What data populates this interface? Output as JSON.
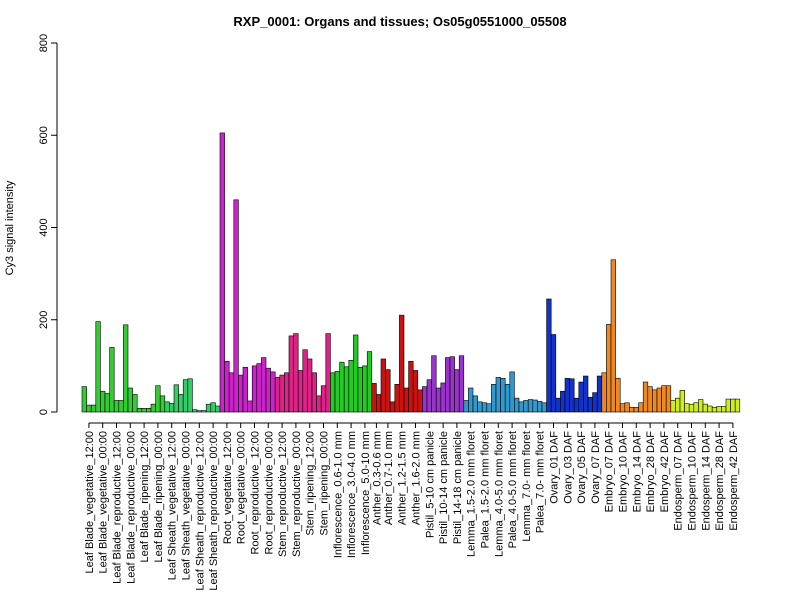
{
  "chart_data": {
    "type": "bar",
    "title": "RXP_0001: Organs and tissues; Os05g0551000_05508",
    "xlabel": "",
    "ylabel": "Cy3 signal intensity",
    "ylim": [
      0,
      800
    ],
    "yticks": [
      0,
      200,
      400,
      600,
      800
    ],
    "grid": false,
    "legend": "none",
    "groups": [
      {
        "label": "Leaf Blade_vegetative_12:00",
        "color": "#33CC33",
        "values": [
          55,
          15,
          15
        ]
      },
      {
        "label": "Leaf Blade_vegetative_00:00",
        "color": "#33CC33",
        "values": [
          196,
          45,
          40
        ]
      },
      {
        "label": "Leaf Blade_reproductive_12:00",
        "color": "#33CC33",
        "values": [
          140,
          25,
          25
        ]
      },
      {
        "label": "Leaf Blade_reproductive_00:00",
        "color": "#33CC33",
        "values": [
          189,
          52,
          38
        ]
      },
      {
        "label": "Leaf Blade_ripening_12:00",
        "color": "#33CC33",
        "values": [
          8,
          8,
          8
        ]
      },
      {
        "label": "Leaf Blade_ripening_00:00",
        "color": "#33CC33",
        "values": [
          17,
          57,
          35
        ]
      },
      {
        "label": "Leaf Sheath_vegetative_12:00",
        "color": "#33CC66",
        "values": [
          22,
          19,
          59
        ]
      },
      {
        "label": "Leaf Sheath_vegetative_00:00",
        "color": "#33CC66",
        "values": [
          38,
          70,
          72
        ]
      },
      {
        "label": "Leaf Sheath_reproductive_12:00",
        "color": "#33CC66",
        "values": [
          5,
          3,
          3
        ]
      },
      {
        "label": "Leaf Sheath_reproductive_00:00",
        "color": "#33CC66",
        "values": [
          17,
          20,
          13
        ]
      },
      {
        "label": "Root_vegetative_12:00",
        "color": "#CC22CC",
        "values": [
          605,
          110,
          85
        ]
      },
      {
        "label": "Root_vegetative_00:00",
        "color": "#CC22CC",
        "values": [
          460,
          80,
          97
        ]
      },
      {
        "label": "Root_reproductive_12:00",
        "color": "#CC22CC",
        "values": [
          24,
          100,
          105
        ]
      },
      {
        "label": "Root_reproductive_00:00",
        "color": "#CC22CC",
        "values": [
          118,
          95,
          87
        ]
      },
      {
        "label": "Stem_reproductive_12:00",
        "color": "#DD2288",
        "values": [
          75,
          80,
          85
        ]
      },
      {
        "label": "Stem_reproductive_00:00",
        "color": "#DD2288",
        "values": [
          165,
          170,
          90
        ]
      },
      {
        "label": "Stem_ripening_12:00",
        "color": "#DD2288",
        "values": [
          135,
          115,
          85
        ]
      },
      {
        "label": "Stem_ripening_00:00",
        "color": "#DD2288",
        "values": [
          35,
          57,
          170
        ]
      },
      {
        "label": "Inflorescence_0.6-1.0 mm",
        "color": "#22CC22",
        "values": [
          85,
          88,
          108
        ]
      },
      {
        "label": "Inflorescence_3.0-4.0 mm",
        "color": "#22CC22",
        "values": [
          98,
          112,
          167
        ]
      },
      {
        "label": "Inflorescence_5.0-10 mm",
        "color": "#22CC22",
        "values": [
          97,
          100,
          131
        ]
      },
      {
        "label": "Anther_0.3-0.6 mm",
        "color": "#CC1111",
        "values": [
          62,
          38
        ]
      },
      {
        "label": "Anther_0.7-1.0 mm",
        "color": "#CC1111",
        "values": [
          115,
          92,
          22
        ]
      },
      {
        "label": "Anther_1.2-1.5 mm",
        "color": "#CC1111",
        "values": [
          60,
          210,
          52
        ]
      },
      {
        "label": "Anther_1.6-2.0 mm",
        "color": "#CC1111",
        "values": [
          110,
          90,
          48
        ]
      },
      {
        "label": "Pistil_5-10 cm panicle",
        "color": "#9933CC",
        "values": [
          55,
          70,
          122
        ]
      },
      {
        "label": "Pistil_10-14 cm panicle",
        "color": "#9933CC",
        "values": [
          52,
          63,
          118
        ]
      },
      {
        "label": "Pistil_14-18 cm panicle",
        "color": "#9933CC",
        "values": [
          120,
          92,
          122
        ]
      },
      {
        "label": "Lemma_1.5-2.0 mm floret",
        "color": "#3399CC",
        "values": [
          25,
          52,
          35
        ]
      },
      {
        "label": "Palea_1.5-2.0 mm floret",
        "color": "#3399CC",
        "values": [
          22,
          20,
          18
        ]
      },
      {
        "label": "Lemma_4.0-5.0 mm floret",
        "color": "#3399CC",
        "values": [
          60,
          75,
          73
        ]
      },
      {
        "label": "Palea_4.0-5.0 mm floret",
        "color": "#3399CC",
        "values": [
          60,
          87,
          30
        ]
      },
      {
        "label": "Lemma_7.0- mm floret",
        "color": "#3399CC",
        "values": [
          22,
          25,
          27
        ]
      },
      {
        "label": "Palea_7.0- mm floret",
        "color": "#3399CC",
        "values": [
          26,
          23,
          20
        ]
      },
      {
        "label": "Ovary_01 DAF",
        "color": "#1133CC",
        "values": [
          245,
          168,
          30
        ]
      },
      {
        "label": "Ovary_03 DAF",
        "color": "#1133CC",
        "values": [
          45,
          73,
          72
        ]
      },
      {
        "label": "Ovary_05 DAF",
        "color": "#1133CC",
        "values": [
          30,
          65,
          78
        ]
      },
      {
        "label": "Ovary_07 DAF",
        "color": "#1133CC",
        "values": [
          32,
          42,
          78
        ]
      },
      {
        "label": "Embryo_07 DAF",
        "color": "#EE8822",
        "values": [
          85,
          190,
          330
        ]
      },
      {
        "label": "Embryo_10 DAF",
        "color": "#EE8822",
        "values": [
          73,
          18,
          20
        ]
      },
      {
        "label": "Embryo_14 DAF",
        "color": "#EE8822",
        "values": [
          10,
          10,
          20
        ]
      },
      {
        "label": "Embryo_28 DAF",
        "color": "#EE8822",
        "values": [
          65,
          55,
          48
        ]
      },
      {
        "label": "Embryo_42 DAF",
        "color": "#EE8822",
        "values": [
          52,
          57,
          57
        ]
      },
      {
        "label": "Endosperm_07 DAF",
        "color": "#CCEE22",
        "values": [
          25,
          30,
          47
        ]
      },
      {
        "label": "Endosperm_10 DAF",
        "color": "#CCEE22",
        "values": [
          18,
          17,
          20
        ]
      },
      {
        "label": "Endosperm_14 DAF",
        "color": "#CCEE22",
        "values": [
          27,
          17,
          13
        ]
      },
      {
        "label": "Endosperm_28 DAF",
        "color": "#CCEE22",
        "values": [
          10,
          12,
          12
        ]
      },
      {
        "label": "Endosperm_42 DAF",
        "color": "#CCEE22",
        "values": [
          28,
          28,
          28
        ]
      }
    ]
  }
}
